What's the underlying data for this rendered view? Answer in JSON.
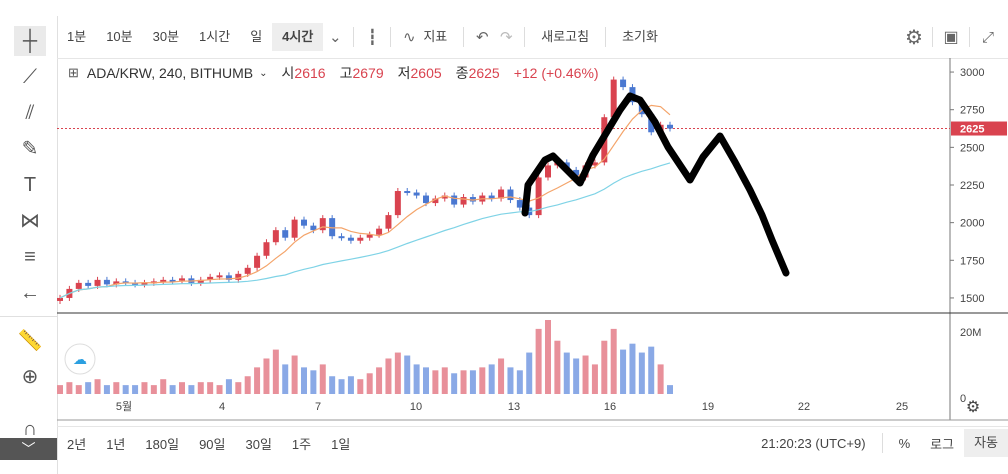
{
  "toolbar": {
    "intervals": [
      "1분",
      "10분",
      "30분",
      "1시간",
      "일",
      "4시간"
    ],
    "active_interval": "4시간",
    "indicators_label": "지표",
    "refresh_label": "새로고침",
    "reset_label": "초기화"
  },
  "legend": {
    "symbol": "ADA/KRW, 240, BITHUMB",
    "open_label": "시",
    "open": "2616",
    "high_label": "고",
    "high": "2679",
    "low_label": "저",
    "low": "2605",
    "close_label": "종",
    "close": "2625",
    "change": "+12 (+0.46%)"
  },
  "price_axis": {
    "ticks": [
      "3000",
      "2750",
      "2500",
      "2250",
      "2000",
      "1750",
      "1500"
    ],
    "current_price": "2625"
  },
  "volume_axis": {
    "ticks": [
      "20M",
      "0"
    ]
  },
  "time_axis": {
    "ticks": [
      "5월",
      "4",
      "7",
      "10",
      "13",
      "16",
      "19",
      "22",
      "25"
    ]
  },
  "bottom": {
    "ranges": [
      "2년",
      "1년",
      "180일",
      "90일",
      "30일",
      "1주",
      "1일"
    ],
    "time": "21:20:23 (UTC+9)",
    "percent_label": "%",
    "log_label": "로그",
    "auto_label": "자동"
  },
  "colors": {
    "up": "#d9434f",
    "down": "#4a78d1",
    "ma_short": "#f4a46a",
    "ma_long": "#7fd3e6",
    "vol_up": "#e8909a",
    "vol_down": "#8aa9e6"
  },
  "chart_data": {
    "type": "candlestick",
    "title": "ADA/KRW, 240, BITHUMB",
    "x_ticks": [
      "5월",
      "4",
      "7",
      "10",
      "13",
      "16",
      "19",
      "22",
      "25"
    ],
    "ylim": [
      1400,
      3080
    ],
    "series": [
      {
        "name": "close",
        "values": [
          1500,
          1560,
          1600,
          1580,
          1620,
          1590,
          1610,
          1600,
          1590,
          1600,
          1610,
          1620,
          1615,
          1630,
          1600,
          1620,
          1640,
          1650,
          1620,
          1660,
          1700,
          1780,
          1870,
          1950,
          1900,
          2020,
          1980,
          1950,
          2030,
          1910,
          1900,
          1880,
          1900,
          1920,
          1960,
          2050,
          2210,
          2200,
          2180,
          2130,
          2160,
          2180,
          2120,
          2170,
          2140,
          2180,
          2160,
          2220,
          2150,
          2100,
          2050,
          2300,
          2380,
          2400,
          2350,
          2300,
          2380,
          2400,
          2700,
          2950,
          2900,
          2800,
          2720,
          2600,
          2650,
          2625
        ]
      },
      {
        "name": "volume",
        "values": [
          3,
          4,
          3,
          4,
          5,
          3,
          4,
          3,
          3,
          4,
          3,
          5,
          3,
          4,
          3,
          4,
          4,
          3,
          5,
          4,
          6,
          9,
          12,
          15,
          10,
          13,
          9,
          8,
          10,
          6,
          5,
          6,
          5,
          7,
          9,
          12,
          14,
          13,
          10,
          9,
          8,
          9,
          7,
          8,
          8,
          9,
          10,
          12,
          9,
          8,
          14,
          22,
          25,
          18,
          14,
          12,
          13,
          10,
          18,
          22,
          15,
          17,
          14,
          16,
          10,
          3
        ]
      }
    ]
  }
}
